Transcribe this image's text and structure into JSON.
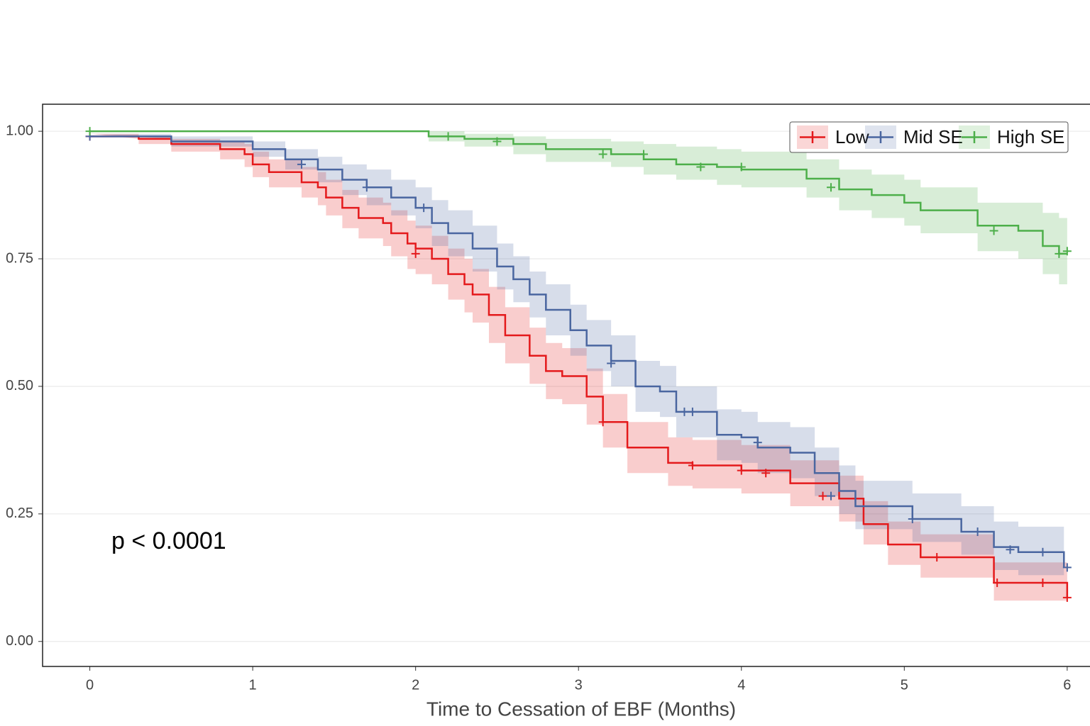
{
  "chart_data": {
    "type": "km",
    "x_label": "Time to Cessation of EBF (Months)",
    "annotation": "p < 0.0001",
    "xlim": [
      -0.29,
      6.14
    ],
    "xticks": [
      0,
      1,
      2,
      3,
      4,
      5,
      6
    ],
    "ylim": [
      -0.049,
      1.053
    ],
    "yticks": [
      {
        "value": 0,
        "label": "0.00"
      },
      {
        "value": 0.25,
        "label": "0.25"
      },
      {
        "value": 0.5,
        "label": "0.50"
      },
      {
        "value": 0.75,
        "label": "0.75"
      },
      {
        "value": 1,
        "label": "1.00"
      }
    ],
    "grid": true,
    "legend": "top-right",
    "series": [
      {
        "name": "Low",
        "color": "#e41a1c",
        "x": [
          0,
          0.3,
          0.5,
          0.8,
          0.95,
          1.0,
          1.1,
          1.3,
          1.4,
          1.45,
          1.55,
          1.65,
          1.8,
          1.85,
          1.95,
          2.0,
          2.1,
          2.2,
          2.3,
          2.35,
          2.45,
          2.55,
          2.7,
          2.8,
          2.9,
          3.05,
          3.15,
          3.3,
          3.55,
          3.7,
          4.0,
          4.3,
          4.6,
          4.75,
          4.9,
          5.1,
          5.55,
          6.0
        ],
        "values": [
          0.99,
          0.985,
          0.975,
          0.965,
          0.955,
          0.935,
          0.92,
          0.9,
          0.89,
          0.87,
          0.85,
          0.83,
          0.82,
          0.8,
          0.78,
          0.77,
          0.75,
          0.72,
          0.7,
          0.68,
          0.64,
          0.6,
          0.56,
          0.53,
          0.52,
          0.48,
          0.43,
          0.38,
          0.35,
          0.345,
          0.335,
          0.31,
          0.28,
          0.23,
          0.19,
          0.165,
          0.115,
          0.086
        ],
        "lower": [
          0.985,
          0.975,
          0.96,
          0.945,
          0.93,
          0.91,
          0.89,
          0.87,
          0.855,
          0.835,
          0.81,
          0.79,
          0.775,
          0.755,
          0.73,
          0.72,
          0.7,
          0.67,
          0.645,
          0.625,
          0.585,
          0.545,
          0.505,
          0.475,
          0.465,
          0.425,
          0.38,
          0.33,
          0.305,
          0.3,
          0.29,
          0.265,
          0.235,
          0.19,
          0.15,
          0.125,
          0.08,
          0.04
        ],
        "upper": [
          0.995,
          0.99,
          0.985,
          0.98,
          0.975,
          0.96,
          0.945,
          0.93,
          0.92,
          0.905,
          0.885,
          0.87,
          0.86,
          0.845,
          0.825,
          0.815,
          0.795,
          0.77,
          0.75,
          0.73,
          0.695,
          0.655,
          0.615,
          0.585,
          0.575,
          0.535,
          0.485,
          0.43,
          0.4,
          0.395,
          0.385,
          0.355,
          0.325,
          0.275,
          0.235,
          0.21,
          0.155,
          0.13
        ],
        "censor_x": [
          0,
          2.0,
          3.15,
          3.7,
          4.0,
          4.15,
          4.5,
          5.2,
          5.57,
          5.85,
          6.0
        ],
        "censor_y": [
          0.99,
          0.76,
          0.43,
          0.345,
          0.335,
          0.33,
          0.285,
          0.165,
          0.115,
          0.115,
          0.086
        ]
      },
      {
        "name": "Mid SE",
        "color": "#4a66a0",
        "x": [
          0,
          0.5,
          1.0,
          1.2,
          1.4,
          1.55,
          1.7,
          1.85,
          2.0,
          2.1,
          2.2,
          2.35,
          2.5,
          2.6,
          2.7,
          2.8,
          2.95,
          3.05,
          3.2,
          3.35,
          3.5,
          3.6,
          3.85,
          4.0,
          4.1,
          4.3,
          4.45,
          4.6,
          4.7,
          5.05,
          5.35,
          5.55,
          5.7,
          5.98
        ],
        "values": [
          0.99,
          0.98,
          0.965,
          0.945,
          0.925,
          0.905,
          0.89,
          0.87,
          0.85,
          0.82,
          0.8,
          0.77,
          0.735,
          0.71,
          0.68,
          0.65,
          0.61,
          0.58,
          0.55,
          0.5,
          0.49,
          0.45,
          0.405,
          0.4,
          0.38,
          0.37,
          0.33,
          0.295,
          0.265,
          0.24,
          0.215,
          0.185,
          0.175,
          0.145
        ],
        "lower": [
          0.985,
          0.97,
          0.95,
          0.925,
          0.9,
          0.875,
          0.855,
          0.835,
          0.81,
          0.775,
          0.755,
          0.725,
          0.69,
          0.665,
          0.635,
          0.6,
          0.56,
          0.53,
          0.5,
          0.45,
          0.44,
          0.4,
          0.355,
          0.35,
          0.33,
          0.32,
          0.285,
          0.25,
          0.22,
          0.195,
          0.17,
          0.14,
          0.13,
          0.1
        ],
        "upper": [
          0.995,
          0.99,
          0.98,
          0.965,
          0.95,
          0.935,
          0.925,
          0.905,
          0.89,
          0.865,
          0.845,
          0.815,
          0.78,
          0.755,
          0.725,
          0.7,
          0.66,
          0.63,
          0.6,
          0.55,
          0.54,
          0.5,
          0.455,
          0.45,
          0.43,
          0.42,
          0.38,
          0.345,
          0.315,
          0.29,
          0.265,
          0.235,
          0.225,
          0.2
        ],
        "censor_x": [
          0,
          1.3,
          1.7,
          2.05,
          3.2,
          3.65,
          3.7,
          4.1,
          4.55,
          5.05,
          5.45,
          5.65,
          5.85,
          6.0
        ],
        "censor_y": [
          0.99,
          0.935,
          0.89,
          0.85,
          0.545,
          0.45,
          0.45,
          0.39,
          0.285,
          0.24,
          0.215,
          0.18,
          0.175,
          0.145
        ]
      },
      {
        "name": "High SE",
        "color": "#4daf4a",
        "x": [
          0,
          2.08,
          2.3,
          2.6,
          2.8,
          3.2,
          3.4,
          3.6,
          3.85,
          4.0,
          4.4,
          4.6,
          4.8,
          5.0,
          5.1,
          5.45,
          5.7,
          5.85,
          5.95,
          6.0
        ],
        "values": [
          1.0,
          0.99,
          0.985,
          0.975,
          0.965,
          0.955,
          0.945,
          0.935,
          0.93,
          0.925,
          0.907,
          0.886,
          0.875,
          0.86,
          0.845,
          0.815,
          0.805,
          0.775,
          0.76,
          0.76
        ],
        "lower": [
          1.0,
          0.98,
          0.97,
          0.955,
          0.94,
          0.93,
          0.915,
          0.905,
          0.895,
          0.89,
          0.87,
          0.845,
          0.83,
          0.815,
          0.8,
          0.765,
          0.75,
          0.72,
          0.7,
          0.7
        ],
        "upper": [
          1.0,
          1.0,
          0.995,
          0.99,
          0.985,
          0.98,
          0.975,
          0.97,
          0.965,
          0.96,
          0.945,
          0.925,
          0.915,
          0.905,
          0.89,
          0.86,
          0.86,
          0.84,
          0.83,
          0.83
        ],
        "censor_x": [
          0,
          2.2,
          2.5,
          3.15,
          3.4,
          3.75,
          4.0,
          4.55,
          5.55,
          5.95,
          6.0
        ],
        "censor_y": [
          1.0,
          0.99,
          0.98,
          0.955,
          0.955,
          0.93,
          0.93,
          0.89,
          0.805,
          0.76,
          0.765
        ]
      }
    ]
  }
}
